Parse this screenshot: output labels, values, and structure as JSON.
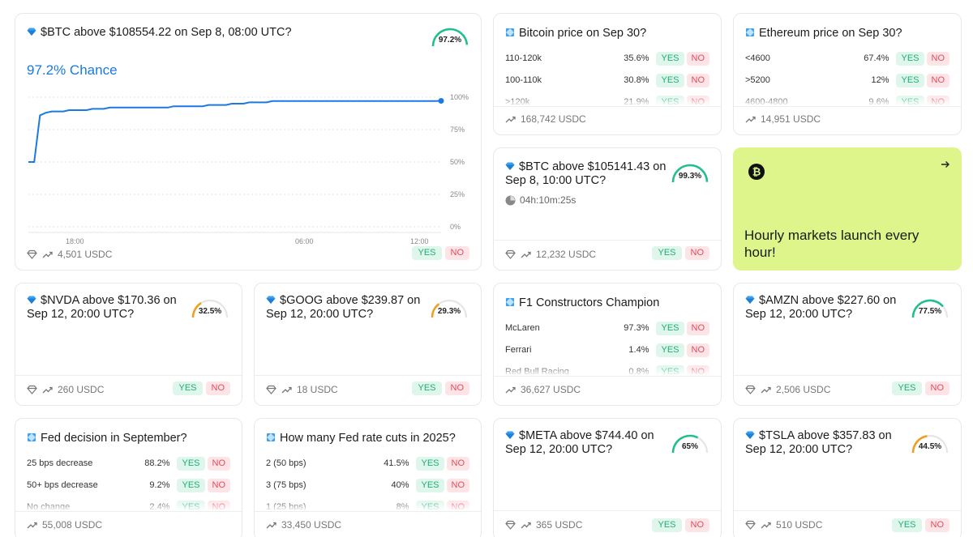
{
  "colors": {
    "accent": "#1a7ae0",
    "yes_bg": "#dff6ec",
    "yes_fg": "#1fae74",
    "no_bg": "#fde4e6",
    "no_fg": "#e54a5b",
    "promo_bg": "#ddf58a"
  },
  "buttons": {
    "yes": "YES",
    "no": "NO"
  },
  "featured": {
    "title": "$BTC above $108554.22 on Sep 8, 08:00 UTC?",
    "gauge": "97.2%",
    "gauge_value": 97.2,
    "chance": "97.2% Chance",
    "volume": "4,501 USDC",
    "chart_data": {
      "type": "line",
      "x_ticks": [
        "18:00",
        "06:00",
        "12:00"
      ],
      "y_ticks": [
        "100%",
        "75%",
        "50%",
        "25%",
        "0%"
      ],
      "ylim": [
        0,
        100
      ],
      "grid": true,
      "values": [
        50,
        50,
        86,
        88,
        89,
        89,
        89,
        90,
        90,
        90,
        90,
        91,
        91,
        91,
        92,
        92,
        92,
        92,
        92,
        92,
        92,
        92,
        92,
        92,
        92,
        93,
        93,
        93,
        93,
        93,
        93,
        94,
        94,
        94,
        94,
        95,
        95,
        95,
        96,
        96,
        96,
        96,
        97,
        97,
        97,
        97,
        97,
        97,
        97,
        97,
        97,
        97,
        97,
        97,
        97,
        97,
        97,
        97,
        97,
        97,
        97,
        97,
        97,
        97,
        97,
        97,
        97,
        97,
        97,
        97,
        97,
        97.2
      ]
    }
  },
  "btc_sep30": {
    "title": "Bitcoin price on Sep 30?",
    "options": [
      {
        "label": "110-120k",
        "pct": "35.6%"
      },
      {
        "label": "100-110k",
        "pct": "30.8%"
      },
      {
        "label": ">120k",
        "pct": "21.9%"
      }
    ],
    "volume": "168,742 USDC"
  },
  "eth_sep30": {
    "title": "Ethereum price on Sep 30?",
    "options": [
      {
        "label": "<4600",
        "pct": "67.4%"
      },
      {
        "label": ">5200",
        "pct": "12%"
      },
      {
        "label": "4600-4800",
        "pct": "9.6%"
      }
    ],
    "volume": "14,951 USDC"
  },
  "btc_hourly": {
    "title": "$BTC above $105141.43 on Sep 8, 10:00 UTC?",
    "gauge": "99.3%",
    "gauge_value": 99.3,
    "timer": "04h:10m:25s",
    "volume": "12,232 USDC"
  },
  "promo": {
    "text": "Hourly markets launch every hour!"
  },
  "nvda": {
    "title": "$NVDA above $170.36 on Sep 12, 20:00 UTC?",
    "gauge": "32.5%",
    "gauge_value": 32.5,
    "volume": "260 USDC"
  },
  "goog": {
    "title": "$GOOG above $239.87 on Sep 12, 20:00 UTC?",
    "gauge": "29.3%",
    "gauge_value": 29.3,
    "volume": "18 USDC"
  },
  "f1": {
    "title": "F1 Constructors Champion",
    "options": [
      {
        "label": "McLaren",
        "pct": "97.3%"
      },
      {
        "label": "Ferrari",
        "pct": "1.4%"
      },
      {
        "label": "Red Bull Racing",
        "pct": "0.8%"
      }
    ],
    "volume": "36,627 USDC"
  },
  "amzn": {
    "title": "$AMZN above $227.60 on Sep 12, 20:00 UTC?",
    "gauge": "77.5%",
    "gauge_value": 77.5,
    "volume": "2,506 USDC"
  },
  "fed": {
    "title": "Fed decision in September?",
    "options": [
      {
        "label": "25 bps decrease",
        "pct": "88.2%"
      },
      {
        "label": "50+ bps decrease",
        "pct": "9.2%"
      },
      {
        "label": "No change",
        "pct": "2.4%"
      }
    ],
    "volume": "55,008 USDC"
  },
  "fed_cuts": {
    "title": "How many Fed rate cuts in 2025?",
    "options": [
      {
        "label": "2 (50 bps)",
        "pct": "41.5%"
      },
      {
        "label": "3 (75 bps)",
        "pct": "40%"
      },
      {
        "label": "1 (25 bps)",
        "pct": "8%"
      }
    ],
    "volume": "33,450 USDC"
  },
  "meta": {
    "title": "$META above $744.40 on Sep 12, 20:00 UTC?",
    "gauge": "65%",
    "gauge_value": 65,
    "volume": "365 USDC"
  },
  "tsla": {
    "title": "$TSLA above $357.83 on Sep 12, 20:00 UTC?",
    "gauge": "44.5%",
    "gauge_value": 44.5,
    "volume": "510 USDC"
  }
}
